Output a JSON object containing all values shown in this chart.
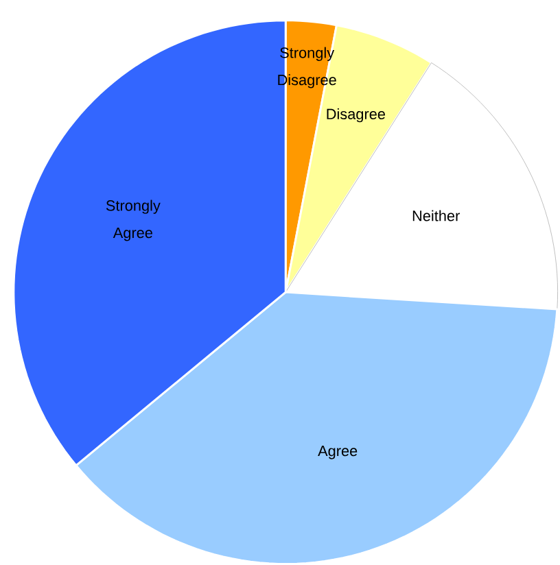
{
  "chart_data": {
    "type": "pie",
    "categories": [
      "Strongly Disagree",
      "Disagree",
      "Neither",
      "Agree",
      "Strongly Agree"
    ],
    "values": [
      3,
      6,
      17,
      38,
      36
    ],
    "colors": [
      "#ff9900",
      "#ffff99",
      "#ffffff",
      "#99ccff",
      "#3366ff"
    ]
  }
}
